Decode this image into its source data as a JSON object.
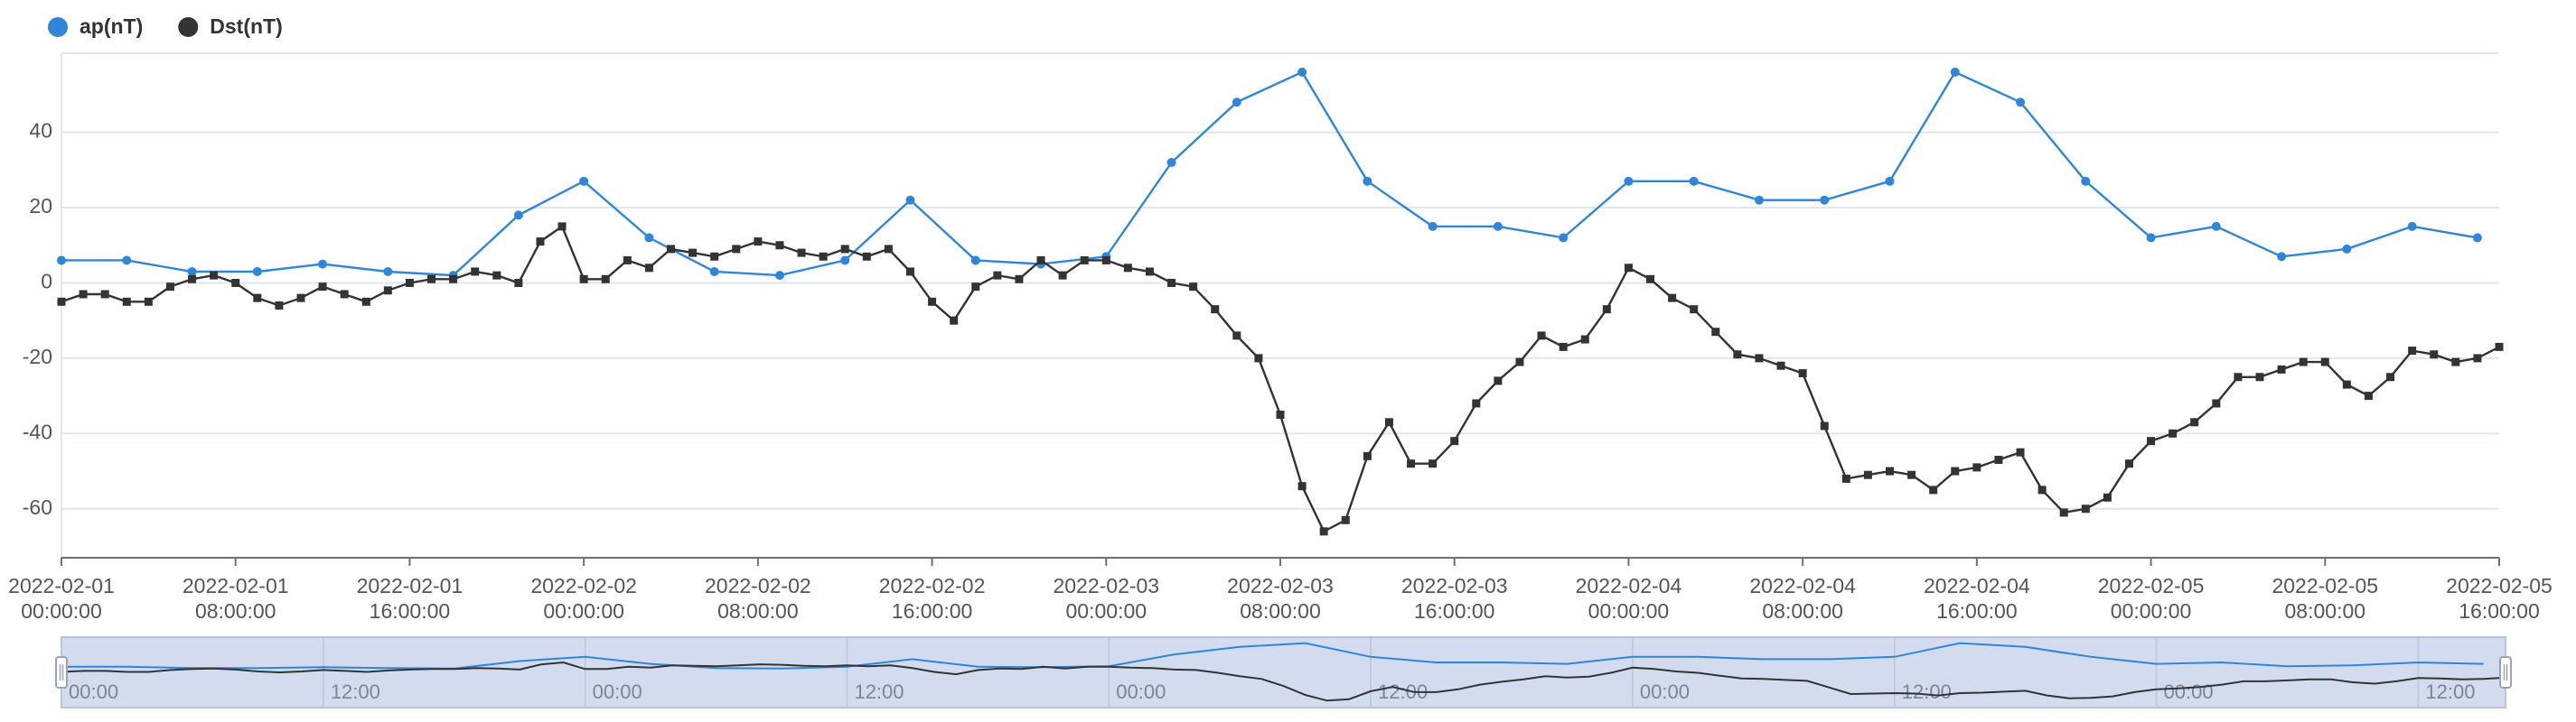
{
  "chart_data": {
    "type": "line",
    "legend": "top-left",
    "grid": true,
    "xlim": [
      "2022-02-01 00:00:00",
      "2022-02-05 16:00:00"
    ],
    "xticks": [
      "2022-02-01 00:00:00",
      "2022-02-01 08:00:00",
      "2022-02-01 16:00:00",
      "2022-02-02 00:00:00",
      "2022-02-02 08:00:00",
      "2022-02-02 16:00:00",
      "2022-02-03 00:00:00",
      "2022-02-03 08:00:00",
      "2022-02-03 16:00:00",
      "2022-02-04 00:00:00",
      "2022-02-04 08:00:00",
      "2022-02-04 16:00:00",
      "2022-02-05 00:00:00",
      "2022-02-05 08:00:00",
      "2022-02-05 16:00:00"
    ],
    "ylim": [
      -73,
      61
    ],
    "yticks": [
      -60,
      -40,
      -20,
      0,
      20,
      40
    ],
    "series": [
      {
        "name": "ap(nT)",
        "color": "#2f86d9",
        "marker": "circle",
        "x": [
          "2022-02-01 00:00:00",
          "2022-02-01 03:00:00",
          "2022-02-01 06:00:00",
          "2022-02-01 09:00:00",
          "2022-02-01 12:00:00",
          "2022-02-01 15:00:00",
          "2022-02-01 18:00:00",
          "2022-02-01 21:00:00",
          "2022-02-02 00:00:00",
          "2022-02-02 03:00:00",
          "2022-02-02 06:00:00",
          "2022-02-02 09:00:00",
          "2022-02-02 12:00:00",
          "2022-02-02 15:00:00",
          "2022-02-02 18:00:00",
          "2022-02-02 21:00:00",
          "2022-02-03 00:00:00",
          "2022-02-03 03:00:00",
          "2022-02-03 06:00:00",
          "2022-02-03 09:00:00",
          "2022-02-03 12:00:00",
          "2022-02-03 15:00:00",
          "2022-02-03 18:00:00",
          "2022-02-03 21:00:00",
          "2022-02-04 00:00:00",
          "2022-02-04 03:00:00",
          "2022-02-04 06:00:00",
          "2022-02-04 09:00:00",
          "2022-02-04 12:00:00",
          "2022-02-04 15:00:00",
          "2022-02-04 18:00:00",
          "2022-02-04 21:00:00",
          "2022-02-05 00:00:00",
          "2022-02-05 03:00:00",
          "2022-02-05 06:00:00",
          "2022-02-05 09:00:00",
          "2022-02-05 12:00:00",
          "2022-02-05 15:00:00"
        ],
        "values": [
          6,
          6,
          3,
          3,
          5,
          3,
          2,
          18,
          27,
          12,
          3,
          2,
          6,
          22,
          6,
          5,
          7,
          32,
          48,
          56,
          27,
          15,
          15,
          12,
          27,
          27,
          22,
          22,
          27,
          56,
          48,
          27,
          12,
          15,
          7,
          9,
          15,
          12
        ]
      },
      {
        "name": "Dst(nT)",
        "color": "#333333",
        "marker": "square",
        "x": [
          "2022-02-01 00:00:00",
          "2022-02-01 01:00:00",
          "2022-02-01 02:00:00",
          "2022-02-01 03:00:00",
          "2022-02-01 04:00:00",
          "2022-02-01 05:00:00",
          "2022-02-01 06:00:00",
          "2022-02-01 07:00:00",
          "2022-02-01 08:00:00",
          "2022-02-01 09:00:00",
          "2022-02-01 10:00:00",
          "2022-02-01 11:00:00",
          "2022-02-01 12:00:00",
          "2022-02-01 13:00:00",
          "2022-02-01 14:00:00",
          "2022-02-01 15:00:00",
          "2022-02-01 16:00:00",
          "2022-02-01 17:00:00",
          "2022-02-01 18:00:00",
          "2022-02-01 19:00:00",
          "2022-02-01 20:00:00",
          "2022-02-01 21:00:00",
          "2022-02-01 22:00:00",
          "2022-02-01 23:00:00",
          "2022-02-02 00:00:00",
          "2022-02-02 01:00:00",
          "2022-02-02 02:00:00",
          "2022-02-02 03:00:00",
          "2022-02-02 04:00:00",
          "2022-02-02 05:00:00",
          "2022-02-02 06:00:00",
          "2022-02-02 07:00:00",
          "2022-02-02 08:00:00",
          "2022-02-02 09:00:00",
          "2022-02-02 10:00:00",
          "2022-02-02 11:00:00",
          "2022-02-02 12:00:00",
          "2022-02-02 13:00:00",
          "2022-02-02 14:00:00",
          "2022-02-02 15:00:00",
          "2022-02-02 16:00:00",
          "2022-02-02 17:00:00",
          "2022-02-02 18:00:00",
          "2022-02-02 19:00:00",
          "2022-02-02 20:00:00",
          "2022-02-02 21:00:00",
          "2022-02-02 22:00:00",
          "2022-02-02 23:00:00",
          "2022-02-03 00:00:00",
          "2022-02-03 01:00:00",
          "2022-02-03 02:00:00",
          "2022-02-03 03:00:00",
          "2022-02-03 04:00:00",
          "2022-02-03 05:00:00",
          "2022-02-03 06:00:00",
          "2022-02-03 07:00:00",
          "2022-02-03 08:00:00",
          "2022-02-03 09:00:00",
          "2022-02-03 10:00:00",
          "2022-02-03 11:00:00",
          "2022-02-03 12:00:00",
          "2022-02-03 13:00:00",
          "2022-02-03 14:00:00",
          "2022-02-03 15:00:00",
          "2022-02-03 16:00:00",
          "2022-02-03 17:00:00",
          "2022-02-03 18:00:00",
          "2022-02-03 19:00:00",
          "2022-02-03 20:00:00",
          "2022-02-03 21:00:00",
          "2022-02-03 22:00:00",
          "2022-02-03 23:00:00",
          "2022-02-04 00:00:00",
          "2022-02-04 01:00:00",
          "2022-02-04 02:00:00",
          "2022-02-04 03:00:00",
          "2022-02-04 04:00:00",
          "2022-02-04 05:00:00",
          "2022-02-04 06:00:00",
          "2022-02-04 07:00:00",
          "2022-02-04 08:00:00",
          "2022-02-04 09:00:00",
          "2022-02-04 10:00:00",
          "2022-02-04 11:00:00",
          "2022-02-04 12:00:00",
          "2022-02-04 13:00:00",
          "2022-02-04 14:00:00",
          "2022-02-04 15:00:00",
          "2022-02-04 16:00:00",
          "2022-02-04 17:00:00",
          "2022-02-04 18:00:00",
          "2022-02-04 19:00:00",
          "2022-02-04 20:00:00",
          "2022-02-04 21:00:00",
          "2022-02-04 22:00:00",
          "2022-02-04 23:00:00",
          "2022-02-05 00:00:00",
          "2022-02-05 01:00:00",
          "2022-02-05 02:00:00",
          "2022-02-05 03:00:00",
          "2022-02-05 04:00:00",
          "2022-02-05 05:00:00",
          "2022-02-05 06:00:00",
          "2022-02-05 07:00:00",
          "2022-02-05 08:00:00",
          "2022-02-05 09:00:00",
          "2022-02-05 10:00:00",
          "2022-02-05 11:00:00",
          "2022-02-05 12:00:00",
          "2022-02-05 13:00:00",
          "2022-02-05 14:00:00",
          "2022-02-05 15:00:00",
          "2022-02-05 16:00:00"
        ],
        "values": [
          -5,
          -3,
          -3,
          -5,
          -5,
          -1,
          1,
          2,
          0,
          -4,
          -6,
          -4,
          -1,
          -3,
          -5,
          -2,
          0,
          1,
          1,
          3,
          2,
          0,
          11,
          15,
          1,
          1,
          6,
          4,
          9,
          8,
          7,
          9,
          11,
          10,
          8,
          7,
          9,
          7,
          9,
          3,
          -5,
          -10,
          -1,
          2,
          1,
          6,
          2,
          6,
          6,
          4,
          3,
          0,
          -1,
          -7,
          -14,
          -20,
          -35,
          -54,
          -66,
          -63,
          -46,
          -37,
          -48,
          -48,
          -42,
          -32,
          -26,
          -21,
          -14,
          -17,
          -15,
          -7,
          4,
          1,
          -4,
          -7,
          -13,
          -19,
          -20,
          -22,
          -24,
          -38,
          -52,
          -51,
          -50,
          -51,
          -55,
          -50,
          -49,
          -47,
          -45,
          -55,
          -61,
          -60,
          -57,
          -48,
          -42,
          -40,
          -37,
          -32,
          -25,
          -25,
          -23,
          -21,
          -21,
          -27,
          -30,
          -25,
          -18,
          -19,
          -21,
          -20,
          -17
        ]
      }
    ],
    "data_zoom": {
      "labels": [
        {
          "value": "2022-02-01 00:00:00",
          "label": "00:00"
        },
        {
          "value": "2022-02-01 12:00:00",
          "label": "12:00"
        },
        {
          "value": "2022-02-02 00:00:00",
          "label": "00:00"
        },
        {
          "value": "2022-02-02 12:00:00",
          "label": "12:00"
        },
        {
          "value": "2022-02-03 00:00:00",
          "label": "00:00"
        },
        {
          "value": "2022-02-03 12:00:00",
          "label": "12:00"
        },
        {
          "value": "2022-02-04 00:00:00",
          "label": "00:00"
        },
        {
          "value": "2022-02-04 12:00:00",
          "label": "12:00"
        },
        {
          "value": "2022-02-05 00:00:00",
          "label": "00:00"
        },
        {
          "value": "2022-02-05 12:00:00",
          "label": "12:00"
        }
      ]
    }
  }
}
